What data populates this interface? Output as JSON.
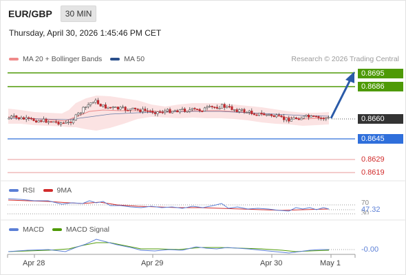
{
  "header": {
    "symbol": "EUR/GBP",
    "timeframe": "30 MIN",
    "datetime": "Thursday, April 30, 2026 1:45:46 PM CET"
  },
  "legend_main": [
    {
      "label": "MA 20 + Bollinger Bands",
      "color": "#f08a8a"
    },
    {
      "label": "MA 50",
      "color": "#2a4f8c"
    }
  ],
  "credit": "Research © 2026 Trading Central",
  "levels": [
    {
      "value": "0.8695",
      "color": "#4e9a06",
      "style": "fill"
    },
    {
      "value": "0.8686",
      "color": "#4e9a06",
      "style": "fill"
    },
    {
      "value": "0.8660",
      "color": "#333333",
      "style": "fill"
    },
    {
      "value": "0.8645",
      "color": "#2f6fdb",
      "style": "fill"
    },
    {
      "value": "0.8629",
      "color": "#d12b2b",
      "style": "text"
    },
    {
      "value": "0.8619",
      "color": "#d12b2b",
      "style": "text"
    }
  ],
  "rsi_panel": {
    "legend": [
      {
        "label": "RSI",
        "color": "#5b7fd6"
      },
      {
        "label": "9MA",
        "color": "#d12b2b"
      }
    ],
    "levels": [
      "70",
      "30"
    ],
    "current": "47.32"
  },
  "macd_panel": {
    "legend": [
      {
        "label": "MACD",
        "color": "#5b7fd6"
      },
      {
        "label": "MACD Signal",
        "color": "#4e9a06"
      }
    ],
    "current": "-0.00"
  },
  "x_axis": [
    "Apr 28",
    "Apr 29",
    "Apr 30",
    "May 1"
  ],
  "colors": {
    "up_candle": "#ffffff",
    "down_candle": "#c0282d",
    "bollinger_fill": "#fbe3e3",
    "arrow": "#2a5aa8"
  }
}
